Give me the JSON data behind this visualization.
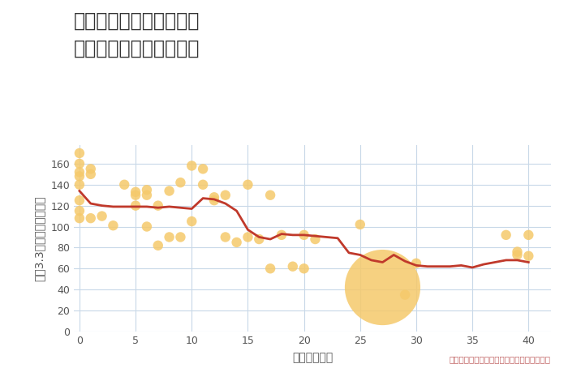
{
  "title": "東京都東久留米市南町の\n築年数別中古戸建て価格",
  "xlabel": "築年数（年）",
  "ylabel": "坪（3.3㎡）単価（万円）",
  "xlim": [
    -0.5,
    42
  ],
  "ylim": [
    0,
    178
  ],
  "yticks": [
    0,
    20,
    40,
    60,
    80,
    100,
    120,
    140,
    160
  ],
  "xticks": [
    0,
    5,
    10,
    15,
    20,
    25,
    30,
    35,
    40
  ],
  "scatter_x": [
    0,
    0,
    0,
    0,
    0,
    0,
    0,
    0,
    1,
    1,
    1,
    2,
    3,
    4,
    5,
    5,
    5,
    6,
    6,
    6,
    7,
    7,
    8,
    8,
    9,
    9,
    10,
    10,
    11,
    11,
    12,
    12,
    13,
    13,
    14,
    15,
    15,
    16,
    17,
    17,
    18,
    19,
    20,
    20,
    21,
    27,
    25,
    29,
    30,
    38,
    39,
    39,
    40,
    40
  ],
  "scatter_y": [
    170,
    160,
    152,
    148,
    140,
    125,
    115,
    108,
    155,
    150,
    108,
    110,
    101,
    140,
    133,
    130,
    120,
    135,
    130,
    100,
    120,
    82,
    134,
    90,
    142,
    90,
    158,
    105,
    155,
    140,
    128,
    125,
    130,
    90,
    85,
    140,
    90,
    88,
    130,
    60,
    92,
    62,
    92,
    60,
    88,
    42,
    102,
    35,
    65,
    92,
    76,
    73,
    92,
    72
  ],
  "scatter_size": [
    80,
    80,
    80,
    80,
    80,
    80,
    80,
    80,
    80,
    80,
    80,
    80,
    80,
    80,
    80,
    80,
    80,
    80,
    80,
    80,
    80,
    80,
    80,
    80,
    80,
    80,
    80,
    80,
    80,
    80,
    80,
    80,
    80,
    80,
    80,
    80,
    80,
    80,
    80,
    80,
    80,
    80,
    80,
    80,
    80,
    4500,
    80,
    80,
    80,
    80,
    80,
    80,
    80,
    80
  ],
  "line_x": [
    0,
    1,
    2,
    3,
    4,
    5,
    6,
    7,
    8,
    9,
    10,
    11,
    12,
    13,
    14,
    15,
    16,
    17,
    18,
    19,
    20,
    21,
    22,
    23,
    24,
    25,
    26,
    27,
    28,
    29,
    30,
    31,
    32,
    33,
    34,
    35,
    36,
    37,
    38,
    39,
    40
  ],
  "line_y": [
    134,
    122,
    120,
    119,
    119,
    119,
    119,
    118,
    119,
    118,
    117,
    127,
    126,
    122,
    115,
    97,
    90,
    88,
    93,
    92,
    92,
    91,
    90,
    89,
    75,
    73,
    68,
    66,
    73,
    67,
    63,
    62,
    62,
    62,
    63,
    61,
    64,
    66,
    68,
    68,
    66
  ],
  "scatter_color": "#F5C96B",
  "scatter_alpha": 0.85,
  "line_color": "#C0392B",
  "line_width": 2.0,
  "bg_color": "#FFFFFF",
  "plot_bg_color": "#FFFFFF",
  "grid_color": "#C8D8E8",
  "annotation_text": "円の大きさは、取引のあった物件面積を示す",
  "title_fontsize": 17,
  "label_fontsize": 10,
  "tick_fontsize": 9,
  "annot_fontsize": 7.5
}
